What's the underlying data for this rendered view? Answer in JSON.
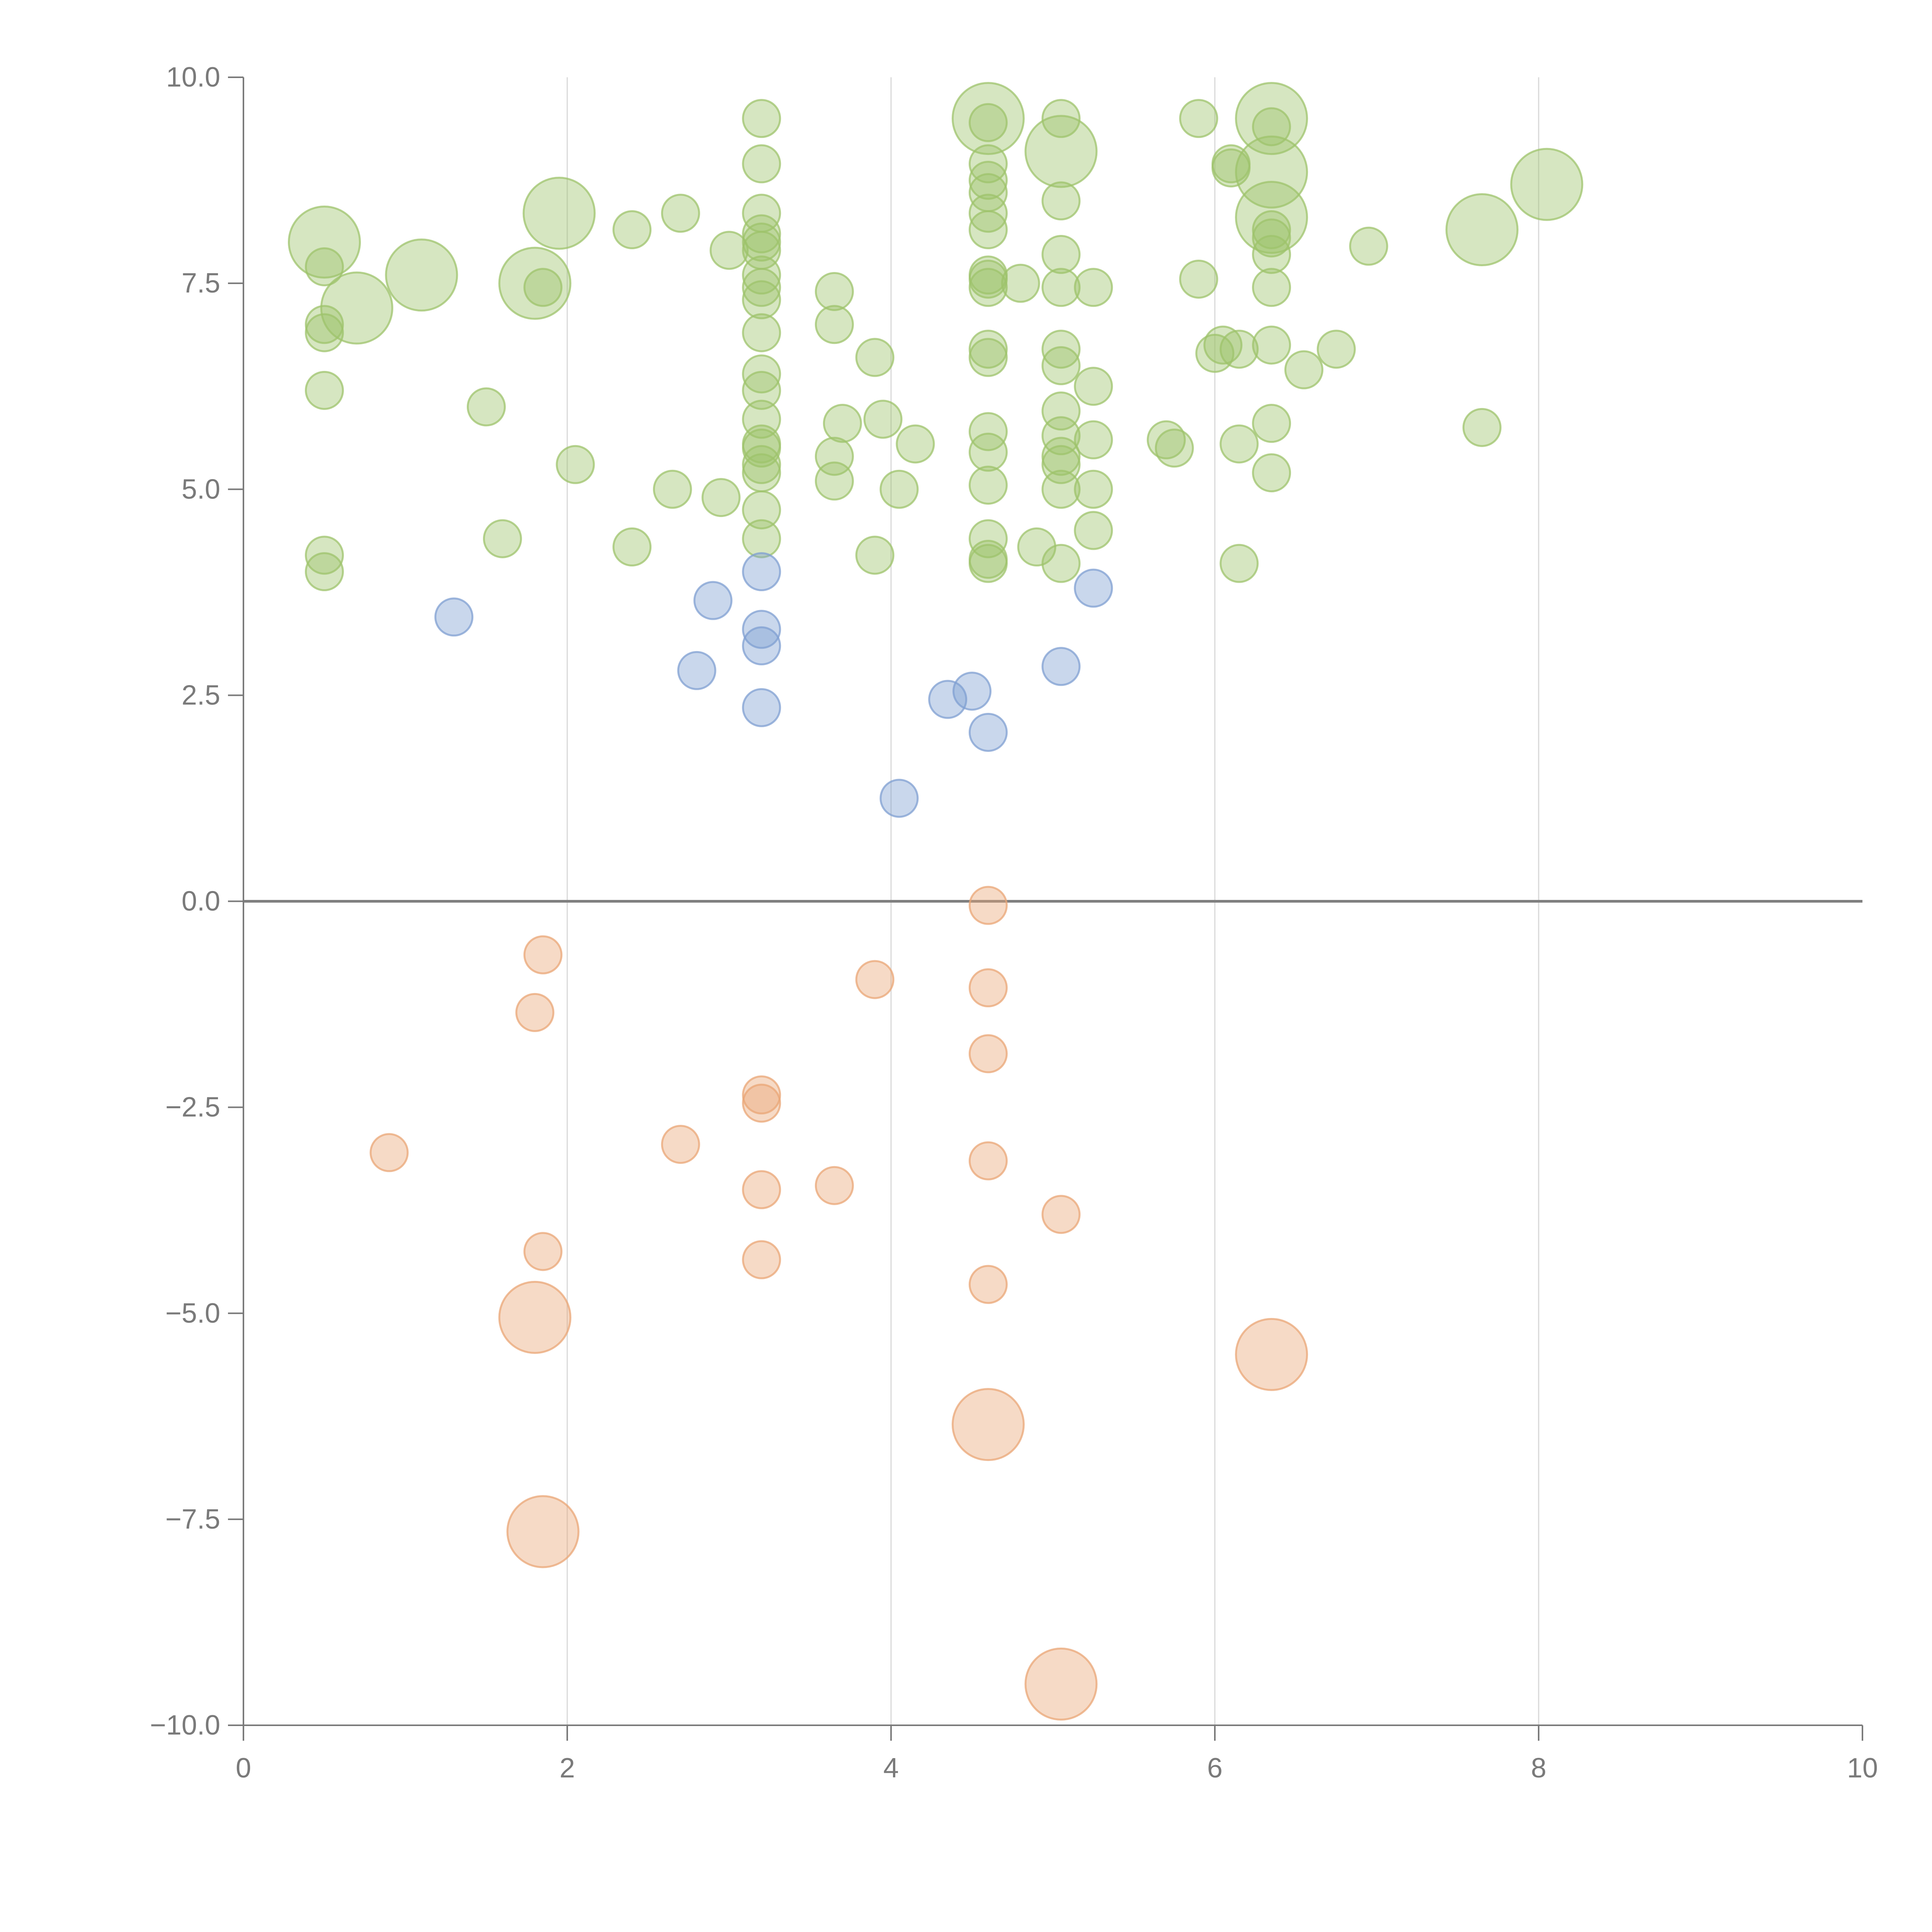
{
  "chart_data": {
    "type": "scatter",
    "title": "",
    "xlabel": "",
    "ylabel": "",
    "xlim": [
      0,
      10
    ],
    "ylim": [
      -10,
      10
    ],
    "xticks": [
      0,
      2,
      4,
      6,
      8,
      10
    ],
    "yticks": [
      10,
      7.5,
      5,
      2.5,
      0,
      -2.5,
      -5,
      -7.5,
      -10
    ],
    "xtick_labels": [
      "0",
      "2",
      "4",
      "6",
      "8",
      "10"
    ],
    "ytick_labels": [
      "10.0",
      "7.5",
      "5.0",
      "2.5",
      "0.0",
      "−2.5",
      "−5.0",
      "−7.5",
      "−10.0"
    ],
    "grid": "vertical",
    "zero_line": true,
    "series": [
      {
        "name": "green",
        "color": "#9dc36b",
        "points": [
          [
            0.5,
            8.0,
            3
          ],
          [
            0.5,
            7.7,
            1
          ],
          [
            0.5,
            7.0,
            1
          ],
          [
            0.5,
            6.9,
            1
          ],
          [
            0.5,
            6.2,
            1
          ],
          [
            0.5,
            4.2,
            1
          ],
          [
            0.5,
            4.0,
            1
          ],
          [
            0.7,
            7.2,
            3
          ],
          [
            1.1,
            7.6,
            3
          ],
          [
            1.5,
            6.0,
            1
          ],
          [
            1.6,
            4.4,
            1
          ],
          [
            1.8,
            7.5,
            3
          ],
          [
            1.85,
            7.45,
            1
          ],
          [
            1.95,
            8.35,
            3
          ],
          [
            2.05,
            5.3,
            1
          ],
          [
            2.4,
            8.15,
            1
          ],
          [
            2.4,
            4.3,
            1
          ],
          [
            2.65,
            5.0,
            1
          ],
          [
            2.7,
            8.35,
            1
          ],
          [
            2.95,
            4.9,
            1
          ],
          [
            3.0,
            7.9,
            1
          ],
          [
            3.2,
            9.5,
            1
          ],
          [
            3.2,
            8.95,
            1
          ],
          [
            3.2,
            8.35,
            1
          ],
          [
            3.2,
            8.1,
            1
          ],
          [
            3.2,
            8.0,
            1
          ],
          [
            3.2,
            7.9,
            1
          ],
          [
            3.2,
            7.6,
            1
          ],
          [
            3.2,
            7.45,
            1
          ],
          [
            3.2,
            7.3,
            1
          ],
          [
            3.2,
            6.9,
            1
          ],
          [
            3.2,
            6.4,
            1
          ],
          [
            3.2,
            6.2,
            1
          ],
          [
            3.2,
            5.85,
            1
          ],
          [
            3.2,
            5.55,
            1
          ],
          [
            3.2,
            5.5,
            1
          ],
          [
            3.2,
            5.3,
            1
          ],
          [
            3.2,
            5.2,
            1
          ],
          [
            3.2,
            4.75,
            1
          ],
          [
            3.2,
            4.4,
            1
          ],
          [
            3.65,
            7.4,
            1
          ],
          [
            3.65,
            7.0,
            1
          ],
          [
            3.65,
            5.4,
            1
          ],
          [
            3.65,
            5.1,
            1
          ],
          [
            3.7,
            5.8,
            1
          ],
          [
            3.9,
            6.6,
            1
          ],
          [
            3.9,
            4.2,
            1
          ],
          [
            3.95,
            5.85,
            1
          ],
          [
            4.05,
            5.0,
            1
          ],
          [
            4.15,
            5.55,
            1
          ],
          [
            4.6,
            9.5,
            3
          ],
          [
            4.6,
            9.45,
            1
          ],
          [
            4.6,
            8.95,
            1
          ],
          [
            4.6,
            8.75,
            1
          ],
          [
            4.6,
            8.6,
            1
          ],
          [
            4.6,
            8.35,
            1
          ],
          [
            4.6,
            8.15,
            1
          ],
          [
            4.6,
            7.6,
            1
          ],
          [
            4.6,
            7.55,
            1
          ],
          [
            4.6,
            7.45,
            1
          ],
          [
            4.6,
            6.7,
            1
          ],
          [
            4.6,
            6.6,
            1
          ],
          [
            4.6,
            5.7,
            1
          ],
          [
            4.6,
            5.45,
            1
          ],
          [
            4.6,
            5.05,
            1
          ],
          [
            4.6,
            4.4,
            1
          ],
          [
            4.6,
            4.15,
            1
          ],
          [
            4.6,
            4.1,
            1
          ],
          [
            4.8,
            7.5,
            1
          ],
          [
            4.9,
            4.3,
            1
          ],
          [
            5.05,
            9.5,
            1
          ],
          [
            5.05,
            9.1,
            3
          ],
          [
            5.05,
            8.5,
            1
          ],
          [
            5.05,
            7.85,
            1
          ],
          [
            5.05,
            7.45,
            1
          ],
          [
            5.05,
            6.7,
            1
          ],
          [
            5.05,
            6.5,
            1
          ],
          [
            5.05,
            5.95,
            1
          ],
          [
            5.05,
            5.65,
            1
          ],
          [
            5.05,
            5.4,
            1
          ],
          [
            5.05,
            5.3,
            1
          ],
          [
            5.05,
            5.0,
            1
          ],
          [
            5.05,
            4.1,
            1
          ],
          [
            5.25,
            7.45,
            1
          ],
          [
            5.25,
            6.25,
            1
          ],
          [
            5.25,
            5.6,
            1
          ],
          [
            5.25,
            5.0,
            1
          ],
          [
            5.25,
            4.5,
            1
          ],
          [
            5.7,
            5.6,
            1
          ],
          [
            5.75,
            5.5,
            1
          ],
          [
            5.9,
            9.5,
            1
          ],
          [
            5.9,
            7.55,
            1
          ],
          [
            6.0,
            6.65,
            1
          ],
          [
            6.05,
            6.75,
            1
          ],
          [
            6.1,
            8.95,
            1
          ],
          [
            6.1,
            8.9,
            1
          ],
          [
            6.15,
            6.7,
            1
          ],
          [
            6.15,
            5.55,
            1
          ],
          [
            6.15,
            4.1,
            1
          ],
          [
            6.35,
            9.5,
            3
          ],
          [
            6.35,
            9.4,
            1
          ],
          [
            6.35,
            8.85,
            3
          ],
          [
            6.35,
            8.3,
            3
          ],
          [
            6.35,
            8.15,
            1
          ],
          [
            6.35,
            8.05,
            1
          ],
          [
            6.35,
            7.85,
            1
          ],
          [
            6.35,
            7.45,
            1
          ],
          [
            6.35,
            6.75,
            1
          ],
          [
            6.35,
            5.8,
            1
          ],
          [
            6.35,
            5.2,
            1
          ],
          [
            6.55,
            6.45,
            1
          ],
          [
            6.75,
            6.7,
            1
          ],
          [
            6.95,
            7.95,
            1
          ],
          [
            7.65,
            8.15,
            3
          ],
          [
            7.65,
            5.75,
            1
          ],
          [
            8.05,
            8.7,
            3
          ]
        ]
      },
      {
        "name": "blue",
        "color": "#7f9fd2",
        "points": [
          [
            1.3,
            3.45,
            1
          ],
          [
            2.8,
            2.8,
            1
          ],
          [
            2.9,
            3.65,
            1
          ],
          [
            3.2,
            4.0,
            1
          ],
          [
            3.2,
            3.3,
            1
          ],
          [
            3.2,
            3.1,
            1
          ],
          [
            3.2,
            2.35,
            1
          ],
          [
            4.05,
            1.25,
            1
          ],
          [
            4.35,
            2.45,
            1
          ],
          [
            4.5,
            2.55,
            1
          ],
          [
            4.6,
            2.05,
            1
          ],
          [
            5.05,
            2.85,
            1
          ],
          [
            5.25,
            3.8,
            1
          ]
        ]
      },
      {
        "name": "orange",
        "color": "#e9a676",
        "points": [
          [
            0.9,
            -3.05,
            1
          ],
          [
            1.8,
            -1.35,
            1
          ],
          [
            1.8,
            -5.05,
            3
          ],
          [
            1.85,
            -0.65,
            1
          ],
          [
            1.85,
            -4.25,
            1
          ],
          [
            1.85,
            -7.65,
            3
          ],
          [
            2.7,
            -2.95,
            1
          ],
          [
            3.2,
            -2.35,
            1
          ],
          [
            3.2,
            -2.45,
            1
          ],
          [
            3.2,
            -3.5,
            1
          ],
          [
            3.2,
            -4.35,
            1
          ],
          [
            3.65,
            -3.45,
            1
          ],
          [
            3.9,
            -0.95,
            1
          ],
          [
            4.6,
            -0.05,
            1
          ],
          [
            4.6,
            -1.05,
            1
          ],
          [
            4.6,
            -1.85,
            1
          ],
          [
            4.6,
            -3.15,
            1
          ],
          [
            4.6,
            -4.65,
            1
          ],
          [
            4.6,
            -6.35,
            3
          ],
          [
            5.05,
            -3.8,
            1
          ],
          [
            5.05,
            -9.5,
            3
          ],
          [
            6.35,
            -5.5,
            3
          ]
        ]
      }
    ],
    "point_format": [
      "x",
      "y",
      "size"
    ]
  }
}
